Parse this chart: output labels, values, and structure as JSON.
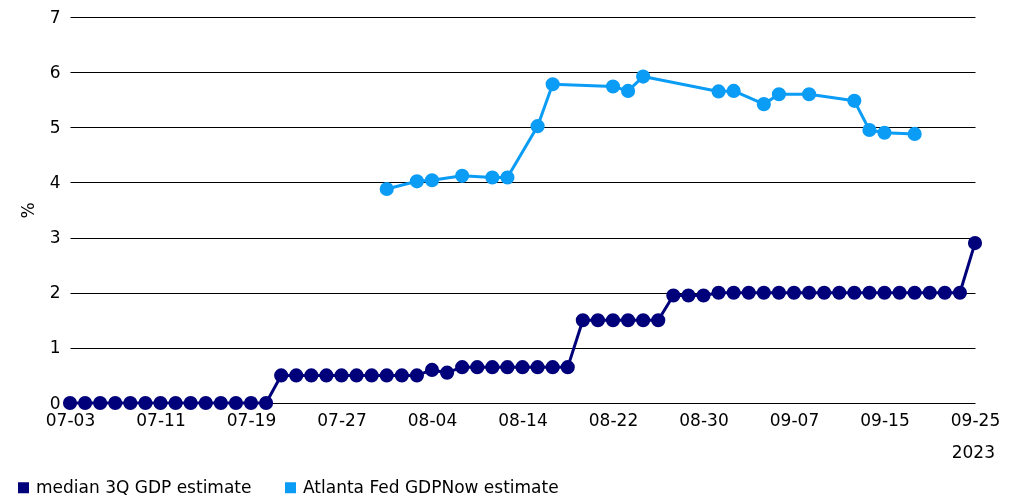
{
  "chart_data": {
    "type": "line",
    "ylabel": "%",
    "categories": [
      "07-03",
      null,
      null,
      null,
      null,
      null,
      "07-11",
      null,
      null,
      null,
      null,
      null,
      "07-19",
      null,
      null,
      null,
      null,
      null,
      "07-27",
      null,
      null,
      null,
      null,
      null,
      "08-04",
      null,
      null,
      null,
      null,
      null,
      "08-14",
      null,
      null,
      null,
      null,
      null,
      "08-22",
      null,
      null,
      null,
      null,
      null,
      "08-30",
      null,
      null,
      null,
      null,
      null,
      "09-07",
      null,
      null,
      null,
      null,
      null,
      "09-15",
      null,
      null,
      null,
      null,
      null,
      "09-25"
    ],
    "series": [
      {
        "name": "median 3Q GDP estimate",
        "color": "#00007a",
        "values": [
          0,
          0,
          0,
          0,
          0,
          0,
          0,
          0,
          0,
          0,
          0,
          0,
          0,
          0,
          0.5,
          0.5,
          0.5,
          0.5,
          0.5,
          0.5,
          0.5,
          0.5,
          0.5,
          0.5,
          0.6,
          0.55,
          0.65,
          0.65,
          0.65,
          0.65,
          0.65,
          0.65,
          0.65,
          0.65,
          1.5,
          1.5,
          1.5,
          1.5,
          1.5,
          1.5,
          1.95,
          1.95,
          1.95,
          2,
          2,
          2,
          2,
          2,
          2,
          2,
          2,
          2,
          2,
          2,
          2,
          2,
          2,
          2,
          2,
          2,
          2.9
        ]
      },
      {
        "name": "Atlanta Fed GDPNow estimate",
        "color": "#0b9cf5",
        "values": [
          null,
          null,
          null,
          null,
          null,
          null,
          null,
          null,
          null,
          null,
          null,
          null,
          null,
          null,
          null,
          null,
          null,
          null,
          null,
          null,
          null,
          3.88,
          null,
          4.02,
          4.04,
          null,
          4.12,
          null,
          4.09,
          4.09,
          null,
          5.02,
          5.78,
          null,
          null,
          null,
          5.74,
          5.66,
          5.92,
          null,
          null,
          null,
          null,
          5.65,
          5.66,
          null,
          5.42,
          5.6,
          null,
          5.6,
          null,
          null,
          5.48,
          4.95,
          4.9,
          null,
          4.88,
          null,
          null,
          null,
          null
        ]
      }
    ],
    "ylim": [
      0,
      7
    ],
    "yticks": [
      0,
      1,
      2,
      3,
      4,
      5,
      6,
      7
    ],
    "grid": "y",
    "legend": "bottom left",
    "marker": "circle",
    "line_style": "solid",
    "annotations": [
      "2023"
    ]
  }
}
